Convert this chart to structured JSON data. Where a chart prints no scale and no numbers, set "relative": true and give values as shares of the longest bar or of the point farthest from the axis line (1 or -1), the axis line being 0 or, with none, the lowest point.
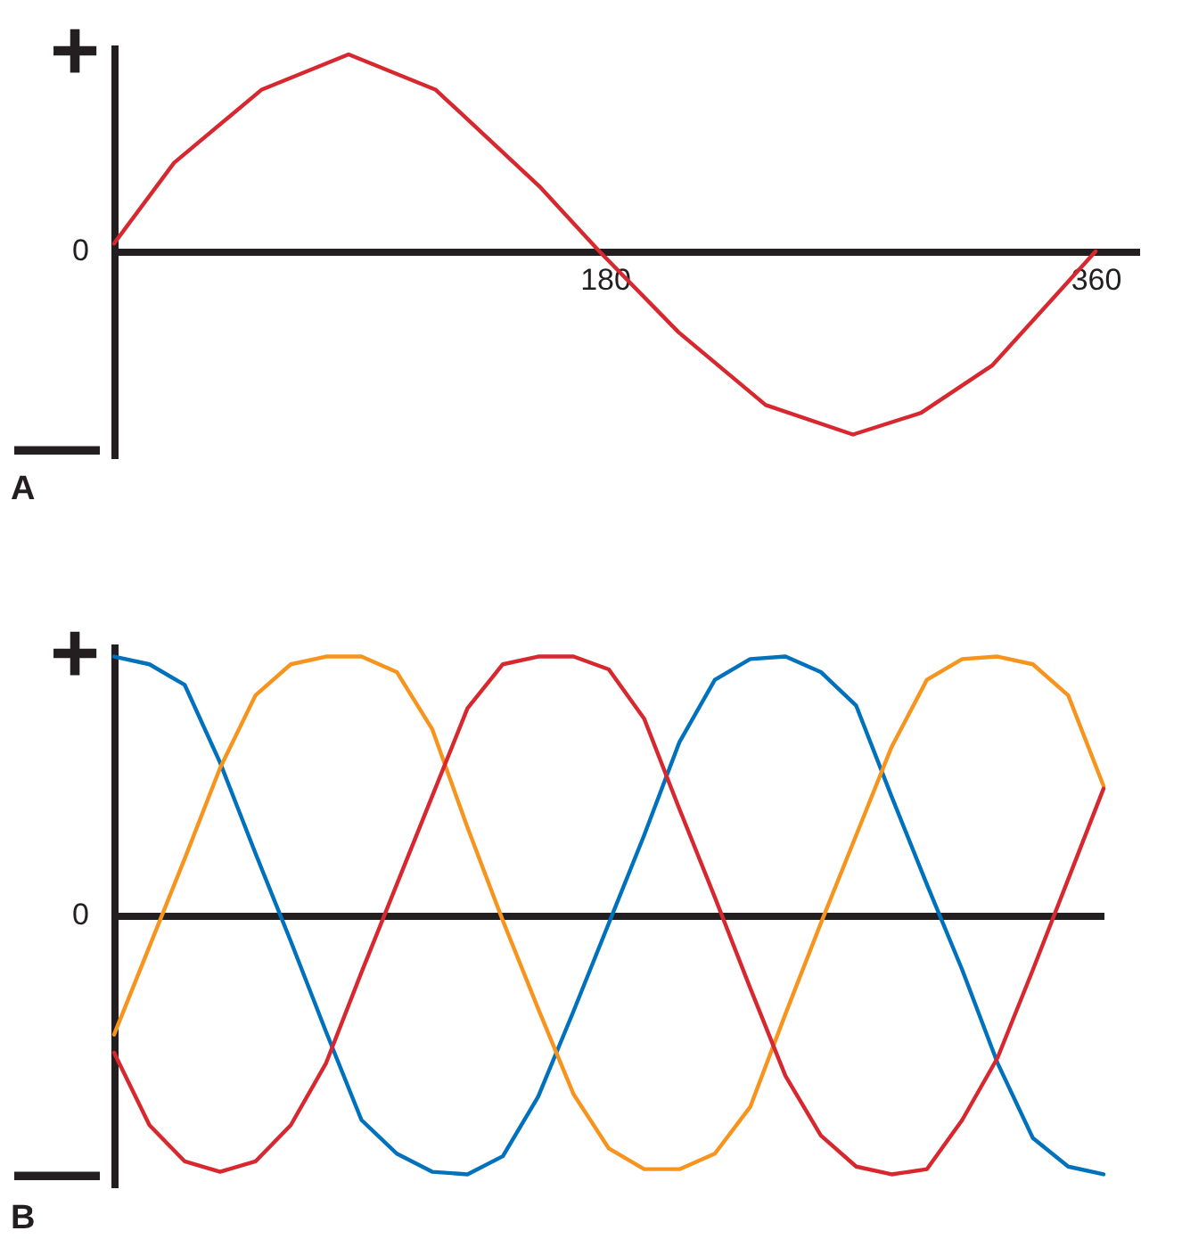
{
  "chart_data": [
    {
      "type": "line",
      "relative": true,
      "x": [
        0,
        22,
        54,
        86,
        118,
        156,
        178,
        207,
        239,
        271,
        296,
        322,
        360
      ],
      "xlim": [
        0,
        376
      ],
      "xticks": [
        180,
        360
      ],
      "marker": "none",
      "line_style": "solid",
      "annotations": [
        "+",
        "0",
        "—",
        "A"
      ],
      "series": [
        {
          "color": "#d7282f",
          "values": [
            0.04,
            0.45,
            0.82,
            1,
            0.82,
            0.33,
            0,
            -0.41,
            -0.78,
            -0.93,
            -0.82,
            -0.58,
            0
          ]
        }
      ]
    },
    {
      "type": "line",
      "relative": true,
      "categories": [
        null,
        null,
        null,
        null,
        null,
        null,
        null,
        null,
        null,
        null,
        null,
        null,
        null,
        null,
        null,
        null,
        null,
        null,
        null,
        null,
        null,
        null,
        null,
        null,
        null,
        null,
        null,
        null,
        null
      ],
      "marker": "none",
      "line_style": "solid",
      "annotations": [
        "+",
        "0",
        "—",
        "B"
      ],
      "series": [
        {
          "color": "#0071bc",
          "values": [
            1.0,
            0.97,
            0.89,
            0.59,
            0.24,
            -0.1,
            -0.45,
            -0.79,
            -0.92,
            -0.99,
            -1.0,
            -0.93,
            -0.7,
            -0.37,
            -0.03,
            0.31,
            0.67,
            0.91,
            0.99,
            1.0,
            0.94,
            0.81,
            0.46,
            0.12,
            -0.21,
            -0.57,
            -0.86,
            -0.97,
            -1.0
          ]
        },
        {
          "color": "#f7941d",
          "values": [
            -0.46,
            -0.12,
            0.22,
            0.57,
            0.85,
            0.97,
            1.0,
            1.0,
            0.94,
            0.72,
            0.34,
            -0.02,
            -0.36,
            -0.69,
            -0.9,
            -0.98,
            -0.98,
            -0.92,
            -0.74,
            -0.38,
            -0.03,
            0.31,
            0.65,
            0.91,
            0.99,
            1.0,
            0.97,
            0.85,
            0.5
          ]
        },
        {
          "color": "#d7282f",
          "values": [
            -0.53,
            -0.81,
            -0.95,
            -0.99,
            -0.95,
            -0.81,
            -0.57,
            -0.22,
            0.12,
            0.46,
            0.8,
            0.97,
            1.0,
            1.0,
            0.95,
            0.76,
            0.41,
            0.07,
            -0.28,
            -0.62,
            -0.85,
            -0.97,
            -1.0,
            -0.98,
            -0.79,
            -0.55,
            -0.21,
            0.14,
            0.49
          ]
        }
      ]
    }
  ]
}
